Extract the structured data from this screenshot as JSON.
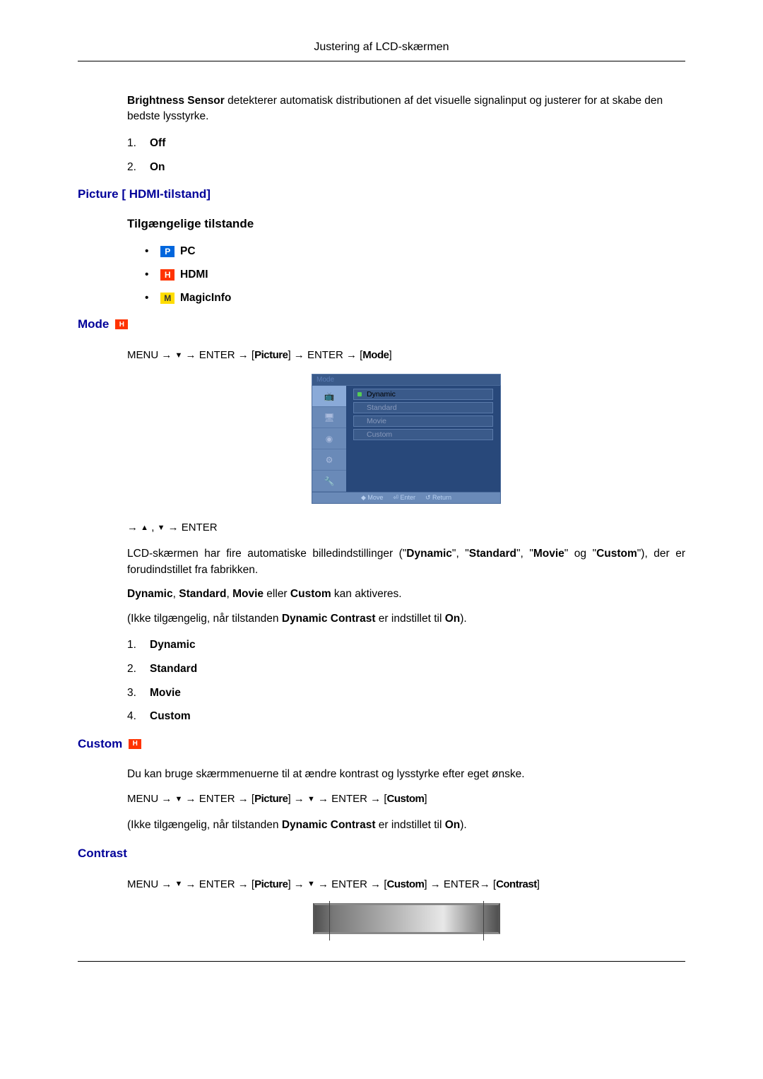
{
  "page_title": "Justering af LCD-skærmen",
  "brightness_sensor": {
    "body_parts": [
      {
        "text": "Brightness Sensor",
        "bold": true
      },
      {
        "text": " detekterer automatisk distributionen af det visuelle signalinput og justerer for at skabe den bedste lysstyrke.",
        "bold": false
      }
    ],
    "options": [
      {
        "num": "1.",
        "label": "Off"
      },
      {
        "num": "2.",
        "label": "On"
      }
    ]
  },
  "picture_hdmi_heading": "Picture [ HDMI-tilstand]",
  "available_modes": {
    "heading": "Tilgængelige tilstande",
    "items": [
      {
        "icon": "P",
        "icon_color": "#0066dd",
        "label": "PC"
      },
      {
        "icon": "H",
        "icon_color": "#ff3300",
        "label": "HDMI"
      },
      {
        "icon": "M",
        "icon_color": "#ffdd00",
        "label": "MagicInfo"
      }
    ]
  },
  "mode_section": {
    "heading": "Mode",
    "path_parts": [
      "MENU → ",
      "▼",
      " → ENTER → [",
      "Picture",
      "] → ENTER → [",
      "Mode",
      "]"
    ],
    "osd": {
      "title": "Mode",
      "options": [
        "Dynamic",
        "Standard",
        "Movie",
        "Custom"
      ],
      "selected_index": 0,
      "footer": [
        "◆ Move",
        "⏎ Enter",
        "↺ Return"
      ]
    },
    "nav_line_parts": [
      "→ ",
      "▲",
      " , ",
      "▼",
      " → ENTER"
    ],
    "paragraph1": "LCD-skærmen har fire automatiske billedindstillinger (\"Dynamic\", \"Standard\", \"Movie\" og \"Custom\"), der er forudindstillet fra fabrikken.",
    "paragraph2_parts": [
      {
        "text": "Dynamic",
        "bold": true
      },
      {
        "text": ", ",
        "bold": false
      },
      {
        "text": "Standard",
        "bold": true
      },
      {
        "text": ", ",
        "bold": false
      },
      {
        "text": "Movie",
        "bold": true
      },
      {
        "text": " eller ",
        "bold": false
      },
      {
        "text": "Custom",
        "bold": true
      },
      {
        "text": " kan aktiveres.",
        "bold": false
      }
    ],
    "paragraph3_parts": [
      {
        "text": "(Ikke tilgængelig, når tilstanden ",
        "bold": false
      },
      {
        "text": "Dynamic Contrast",
        "bold": true
      },
      {
        "text": " er indstillet til ",
        "bold": false
      },
      {
        "text": "On",
        "bold": true
      },
      {
        "text": ").",
        "bold": false
      }
    ],
    "list": [
      {
        "num": "1.",
        "label": "Dynamic"
      },
      {
        "num": "2.",
        "label": "Standard"
      },
      {
        "num": "3.",
        "label": "Movie"
      },
      {
        "num": "4.",
        "label": "Custom"
      }
    ]
  },
  "custom_section": {
    "heading": "Custom",
    "paragraph1": "Du kan bruge skærmmenuerne til at ændre kontrast og lysstyrke efter eget ønske.",
    "path_parts": [
      "MENU → ",
      "▼",
      " → ENTER → [",
      "Picture",
      "] → ",
      "▼",
      " → ENTER → [",
      "Custom",
      "]"
    ],
    "paragraph2_parts": [
      {
        "text": "(Ikke tilgængelig, når tilstanden ",
        "bold": false
      },
      {
        "text": "Dynamic Contrast",
        "bold": true
      },
      {
        "text": " er indstillet til ",
        "bold": false
      },
      {
        "text": "On",
        "bold": true
      },
      {
        "text": ").",
        "bold": false
      }
    ]
  },
  "contrast_section": {
    "heading": "Contrast",
    "path_parts": [
      "MENU → ",
      "▼",
      " → ENTER → [",
      "Picture",
      "] → ",
      "▼",
      " → ENTER → [",
      "Custom",
      "] → ENTER→ [",
      "Contrast",
      "]"
    ]
  }
}
